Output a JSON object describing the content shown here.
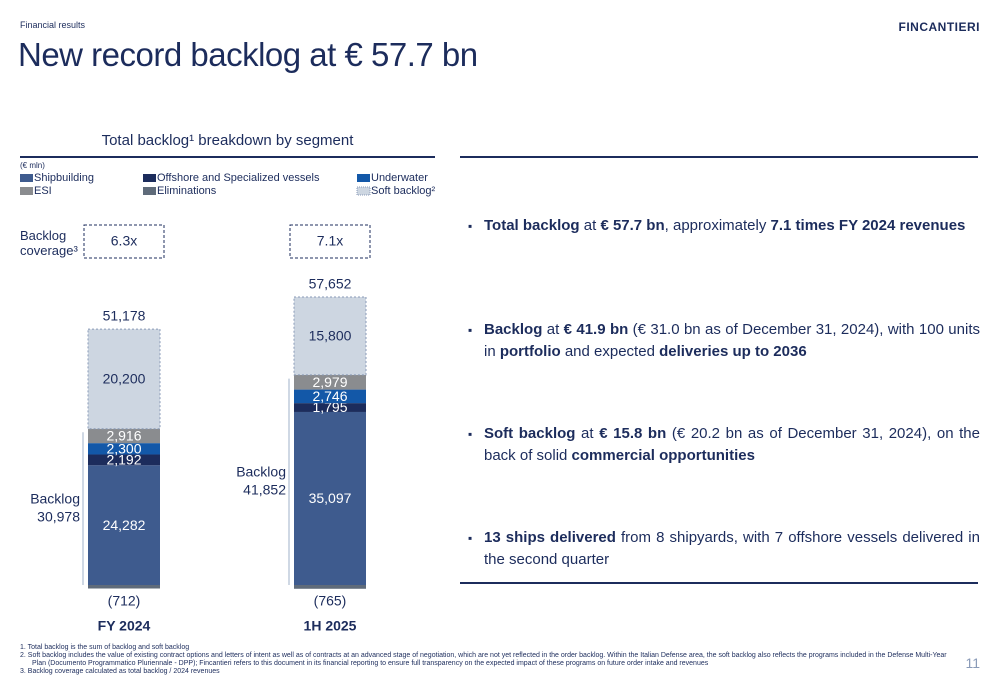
{
  "header": {
    "section": "Financial results",
    "logo": "FINCANTIERI",
    "title": "New record backlog at € 57.7 bn",
    "page_number": "11"
  },
  "chart_data": {
    "type": "stacked-bar",
    "title": "Total backlog¹ breakdown by segment",
    "unit": "(€ mln)",
    "categories": [
      "FY 2024",
      "1H 2025"
    ],
    "series": [
      {
        "name": "Shipbuilding",
        "color": "#3e5b8e",
        "values": [
          24282,
          35097
        ],
        "value_labels": [
          "24,282",
          "35,097"
        ]
      },
      {
        "name": "Offshore and Specialized vessels",
        "color": "#1c2c5c",
        "values": [
          2192,
          1795
        ],
        "value_labels": [
          "2,192",
          "1,795"
        ]
      },
      {
        "name": "Underwater",
        "color": "#1358a8",
        "values": [
          2300,
          2746
        ],
        "value_labels": [
          "2,300",
          "2,746"
        ]
      },
      {
        "name": "ESI",
        "color": "#8a8c8f",
        "values": [
          2916,
          2979
        ],
        "value_labels": [
          "2,916",
          "2,979"
        ]
      },
      {
        "name": "Eliminations",
        "color": "#5f6b7a",
        "values": [
          -712,
          -765
        ],
        "value_labels": [
          "(712)",
          "(765)"
        ]
      },
      {
        "name": "Soft backlog²",
        "color": "#cdd6e1",
        "values": [
          20200,
          15800
        ],
        "value_labels": [
          "20,200",
          "15,800"
        ]
      }
    ],
    "totals": [
      51178,
      57652
    ],
    "total_labels": [
      "51,178",
      "57,652"
    ],
    "backlog": {
      "label": "Backlog",
      "values": [
        30978,
        41852
      ],
      "value_labels": [
        "30,978",
        "41,852"
      ]
    },
    "coverage": {
      "label": "Backlog coverage³",
      "values": [
        6.3,
        7.1
      ],
      "value_labels": [
        "6.3x",
        "7.1x"
      ]
    }
  },
  "bullets": [
    [
      {
        "text": "Total backlog",
        "bold": true
      },
      {
        "text": " at ",
        "bold": false
      },
      {
        "text": "€ 57.7 bn",
        "bold": true
      },
      {
        "text": ", approximately ",
        "bold": false
      },
      {
        "text": "7.1 times FY 2024 revenues",
        "bold": true
      }
    ],
    [
      {
        "text": "Backlog",
        "bold": true
      },
      {
        "text": " at ",
        "bold": false
      },
      {
        "text": "€ 41.9 bn",
        "bold": true
      },
      {
        "text": " (€ 31.0 bn as of December 31, 2024), with 100 units in ",
        "bold": false
      },
      {
        "text": "portfolio",
        "bold": true
      },
      {
        "text": " and expected ",
        "bold": false
      },
      {
        "text": "deliveries up to 2036",
        "bold": true
      }
    ],
    [
      {
        "text": "Soft backlog",
        "bold": true
      },
      {
        "text": " at ",
        "bold": false
      },
      {
        "text": "€ 15.8 bn",
        "bold": true
      },
      {
        "text": " (€ 20.2 bn as of December 31, 2024), on the back of solid ",
        "bold": false
      },
      {
        "text": "commercial opportunities",
        "bold": true
      }
    ],
    [
      {
        "text": "13 ships delivered",
        "bold": true
      },
      {
        "text": " from 8 shipyards, with 7 offshore vessels delivered in the second quarter",
        "bold": false
      }
    ]
  ],
  "footnotes": [
    "1. Total backlog is the sum of backlog and soft backlog",
    "2. Soft backlog includes the value of existing contract options and letters of intent as well as of contracts at an advanced stage of negotiation, which are not yet reflected in the order backlog. Within the Italian Defense area, the soft backlog also reflects the programs included in the Defense Multi-Year Plan (Documento Programmatico Pluriennale - DPP); Fincantieri refers to this document in its financial reporting to ensure full transparency on the expected impact of these programs on future order intake and revenues",
    "3. Backlog coverage calculated as total backlog / 2024 revenues"
  ]
}
